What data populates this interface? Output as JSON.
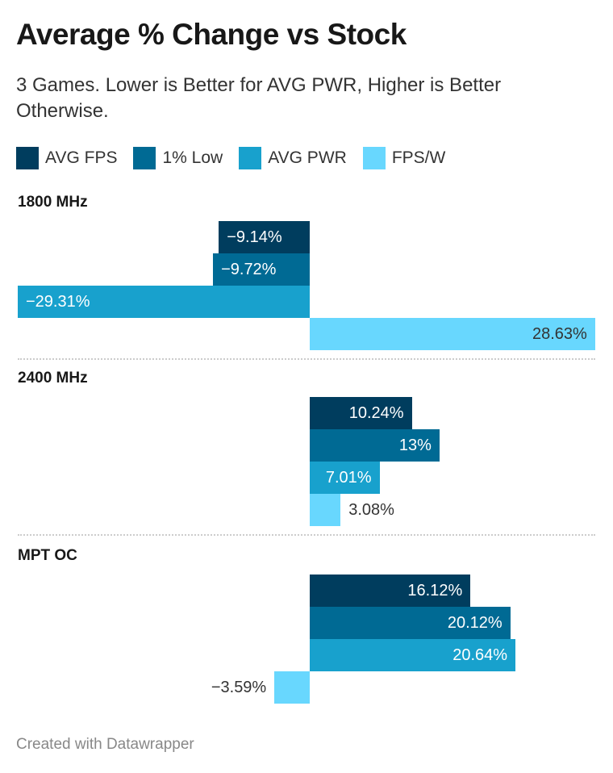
{
  "title": "Average % Change vs Stock",
  "subtitle": "3 Games. Lower is Better for AVG PWR, Higher is Better Otherwise.",
  "footer": "Created with Datawrapper",
  "chart_data": {
    "type": "bar",
    "orientation": "horizontal",
    "title": "Average % Change vs Stock",
    "legend_position": "top",
    "categories": [
      "1800 MHz",
      "2400 MHz",
      "MPT OC"
    ],
    "series": [
      {
        "name": "AVG FPS",
        "color": "#003d5e",
        "values": [
          -9.14,
          10.24,
          16.12
        ],
        "labels": [
          "−9.14%",
          "10.24%",
          "16.12%"
        ]
      },
      {
        "name": "1% Low",
        "color": "#006a94",
        "values": [
          -9.72,
          13,
          20.12
        ],
        "labels": [
          "−9.72%",
          "13%",
          "20.12%"
        ]
      },
      {
        "name": "AVG PWR",
        "color": "#18a1cd",
        "values": [
          -29.31,
          7.01,
          20.64
        ],
        "labels": [
          "−29.31%",
          "7.01%",
          "20.64%"
        ]
      },
      {
        "name": "FPS/W",
        "color": "#68d7fe",
        "values": [
          28.63,
          3.08,
          -3.59
        ],
        "labels": [
          "28.63%",
          "3.08%",
          "−3.59%"
        ]
      }
    ],
    "xlim": [
      -29.31,
      28.63
    ]
  }
}
